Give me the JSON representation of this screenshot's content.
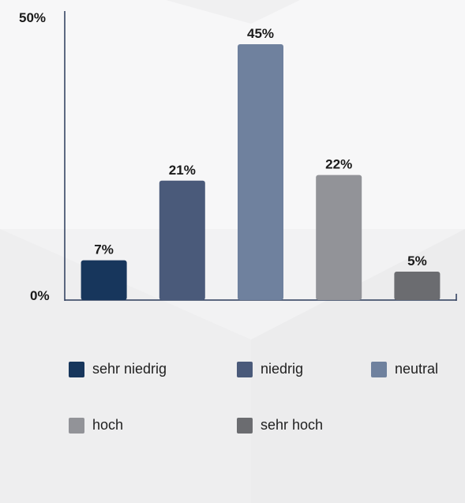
{
  "chart_data": {
    "type": "bar",
    "categories": [
      "sehr niedrig",
      "niedrig",
      "neutral",
      "hoch",
      "sehr hoch"
    ],
    "values": [
      7,
      21,
      45,
      22,
      5
    ],
    "value_labels": [
      "7%",
      "21%",
      "45%",
      "22%",
      "5%"
    ],
    "colors": [
      "#17365c",
      "#4a5a7a",
      "#6f819e",
      "#929398",
      "#6b6c70"
    ],
    "ylim": [
      0,
      50
    ],
    "y_tick_labels": [
      "0%",
      "50%"
    ],
    "grid": false,
    "legend_position": "bottom",
    "title": "",
    "xlabel": "",
    "ylabel": ""
  },
  "legend": {
    "items": [
      {
        "label": "sehr niedrig",
        "color": "#17365c"
      },
      {
        "label": "niedrig",
        "color": "#4a5a7a"
      },
      {
        "label": "neutral",
        "color": "#6f819e"
      },
      {
        "label": "hoch",
        "color": "#929398"
      },
      {
        "label": "sehr hoch",
        "color": "#6b6c70"
      }
    ]
  },
  "colors": {
    "background": "#ffffff",
    "panel_shade": "#f3f3f4",
    "axis": "#2a3a5a",
    "text": "#1a1a1a"
  }
}
